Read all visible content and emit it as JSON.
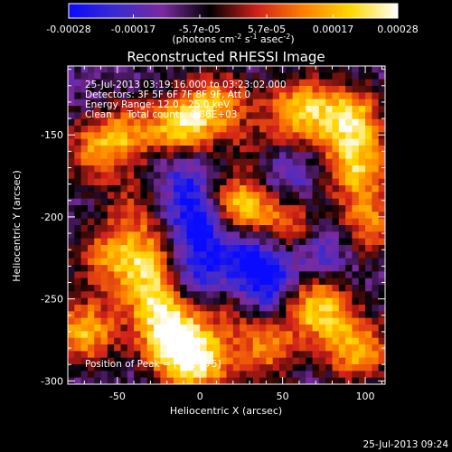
{
  "colorbar": {
    "ticks": [
      "-0.00028",
      "-0.00017",
      "-5.7e-05",
      "5.7e-05",
      "0.00017",
      "0.00028"
    ],
    "tick_values": [
      -0.00028,
      -0.00017,
      -5.7e-05,
      5.7e-05,
      0.00017,
      0.00028
    ],
    "units": "(photons cm",
    "units_exp1": "-2",
    "units_mid": " s",
    "units_exp2": "-1",
    "units_tail": " asec",
    "units_exp3": "-2",
    "units_close": ")",
    "colors": [
      "#0a0aff",
      "#3a2bd0",
      "#7a2aa0",
      "#000000",
      "#d0201a",
      "#ff8000",
      "#ffd800",
      "#ffffff"
    ]
  },
  "chart_data": {
    "type": "heatmap",
    "title": "Reconstructed RHESSI Image",
    "xlabel": "Heliocentric X (arcsec)",
    "ylabel": "Heliocentric Y (arcsec)",
    "xlim": [
      -80,
      112
    ],
    "ylim": [
      -302,
      -108
    ],
    "x_ticks": [
      -50,
      0,
      50,
      100
    ],
    "y_ticks": [
      -150,
      -200,
      -250,
      -300
    ],
    "x_tick_labels": [
      "-50",
      "0",
      "50",
      "100"
    ],
    "y_tick_labels": [
      "-150",
      "-200",
      "-250",
      "-300"
    ],
    "annotations": [
      "25-Jul-2013 03:19:16.000 to 03:23:02.000",
      "Detectors: 3F 5F 6F 7F 8F 9F, Att 0",
      "Energy Range: 12.0 - 25.0 keV",
      "Clean     Total counts: 8.86E+03"
    ],
    "peak_label": "Position of Peak = [-16,-275]",
    "peak": [
      -16,
      -275
    ],
    "hotspots": [
      {
        "x": 24,
        "y": -195,
        "v": 1.0
      },
      {
        "x": -16,
        "y": -275,
        "v": 1.0
      },
      {
        "x": -45,
        "y": -150,
        "v": 0.6
      },
      {
        "x": -10,
        "y": -145,
        "v": 0.9
      },
      {
        "x": 12,
        "y": -130,
        "v": 0.6
      },
      {
        "x": 60,
        "y": -135,
        "v": 0.8
      },
      {
        "x": 90,
        "y": -140,
        "v": 0.9
      },
      {
        "x": 95,
        "y": -170,
        "v": 0.8
      },
      {
        "x": 100,
        "y": -205,
        "v": 0.7
      },
      {
        "x": 55,
        "y": -205,
        "v": 0.7
      },
      {
        "x": 70,
        "y": -255,
        "v": 0.9
      },
      {
        "x": 95,
        "y": -280,
        "v": 0.8
      },
      {
        "x": 40,
        "y": -280,
        "v": 0.6
      },
      {
        "x": -65,
        "y": -160,
        "v": 0.5
      },
      {
        "x": -55,
        "y": -225,
        "v": 0.6
      },
      {
        "x": -70,
        "y": -270,
        "v": 0.8
      },
      {
        "x": -25,
        "y": -250,
        "v": 0.9
      },
      {
        "x": -30,
        "y": -225,
        "v": 0.6
      },
      {
        "x": 0,
        "y": -290,
        "v": 0.8
      },
      {
        "x": 15,
        "y": -255,
        "v": 0.4
      },
      {
        "x": 35,
        "y": -160,
        "v": 0.3
      },
      {
        "x": -40,
        "y": -195,
        "v": 0.4
      }
    ],
    "coldspots": [
      {
        "x": 0,
        "y": -205,
        "v": -0.7
      },
      {
        "x": -5,
        "y": -240,
        "v": -0.6
      },
      {
        "x": 40,
        "y": -240,
        "v": -0.6
      },
      {
        "x": 75,
        "y": -215,
        "v": -0.5
      },
      {
        "x": 50,
        "y": -175,
        "v": -0.4
      },
      {
        "x": -10,
        "y": -175,
        "v": -0.4
      },
      {
        "x": 30,
        "y": -220,
        "v": -0.5
      }
    ]
  },
  "footer": {
    "timestamp": "25-Jul-2013 09:24"
  }
}
